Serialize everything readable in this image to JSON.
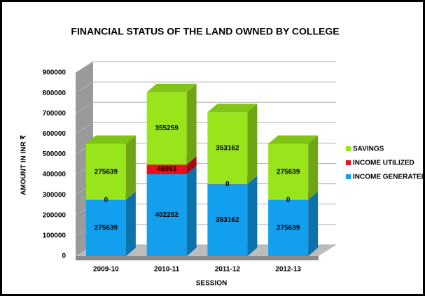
{
  "chart_data": {
    "type": "bar3d_stacked",
    "title": "FINANCIAL STATUS OF THE LAND OWNED BY COLLEGE",
    "x_label": "SESSION",
    "y_label": "AMOUNT IN INR ₹",
    "categories": [
      "2009-10",
      "2010-11",
      "2011-12",
      "2012-13"
    ],
    "series": [
      {
        "name": "INCOME GENERATED",
        "color": "#119fee",
        "values": [
          275639,
          402252,
          353162,
          275639
        ]
      },
      {
        "name": "INCOME UTILIZED",
        "color": "#e8101c",
        "values": [
          0,
          46993,
          0,
          0
        ]
      },
      {
        "name": "SAVINGS",
        "color": "#99e51c",
        "values": [
          275639,
          355259,
          353162,
          275639
        ]
      }
    ],
    "ylim": [
      0,
      900000
    ],
    "yticks": [
      0,
      100000,
      200000,
      300000,
      400000,
      500000,
      600000,
      700000,
      800000,
      900000
    ],
    "grid": true,
    "legend": "right"
  }
}
